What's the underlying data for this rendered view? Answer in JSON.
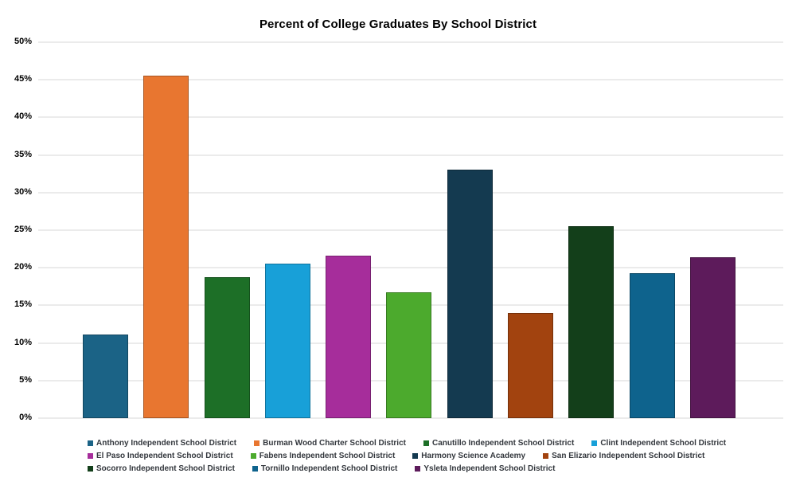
{
  "chart_data": {
    "type": "bar",
    "title": "Percent of College Graduates By School District",
    "xlabel": "",
    "ylabel": "",
    "ylim": [
      0,
      50
    ],
    "grid": "horizontal",
    "gridline_color": "#ebebeb",
    "legend_position": "bottom",
    "y_ticks": [
      "0%",
      "5%",
      "10%",
      "15%",
      "20%",
      "25%",
      "30%",
      "35%",
      "40%",
      "45%",
      "50%"
    ],
    "categories": [
      "Anthony Independent School District",
      "Burman Wood Charter School District",
      "Canutillo Independent School District",
      "Clint Independent School District",
      "El Paso Independent School District",
      "Fabens Independent School District",
      "Harmony Science Academy",
      "San Elizario Independent School District",
      "Socorro Independent School District",
      "Tornillo Independent School District",
      "Ysleta Independent School District"
    ],
    "values": [
      11.1,
      45.5,
      18.8,
      20.6,
      21.6,
      16.7,
      33.0,
      14.0,
      25.5,
      19.3,
      21.4
    ],
    "colors": [
      "#1B6386",
      "#E87630",
      "#1D6F27",
      "#18A0D8",
      "#A62D9B",
      "#4CAA2D",
      "#143A50",
      "#A2430F",
      "#133F1A",
      "#0E638D",
      "#5D1B5B"
    ],
    "legend_rows": [
      [
        0,
        1,
        2,
        3
      ],
      [
        4,
        5,
        6,
        7
      ],
      [
        8,
        9,
        10
      ]
    ]
  }
}
